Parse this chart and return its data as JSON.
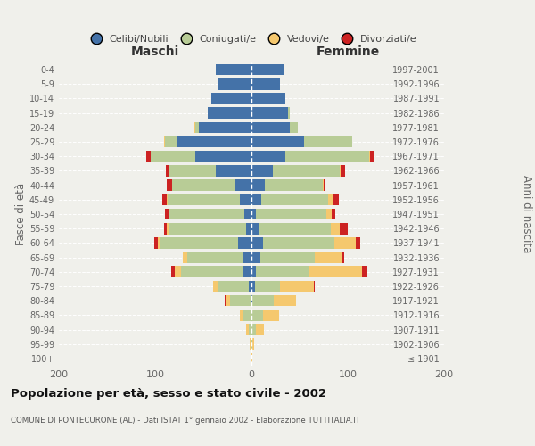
{
  "age_groups": [
    "100+",
    "95-99",
    "90-94",
    "85-89",
    "80-84",
    "75-79",
    "70-74",
    "65-69",
    "60-64",
    "55-59",
    "50-54",
    "45-49",
    "40-44",
    "35-39",
    "30-34",
    "25-29",
    "20-24",
    "15-19",
    "10-14",
    "5-9",
    "0-4"
  ],
  "birth_years": [
    "≤ 1901",
    "1902-1906",
    "1907-1911",
    "1912-1916",
    "1917-1921",
    "1922-1926",
    "1927-1931",
    "1932-1936",
    "1937-1941",
    "1942-1946",
    "1947-1951",
    "1952-1956",
    "1957-1961",
    "1962-1966",
    "1967-1971",
    "1972-1976",
    "1977-1981",
    "1982-1986",
    "1987-1991",
    "1992-1996",
    "1997-2001"
  ],
  "male": {
    "celibi": [
      0,
      0,
      0,
      0,
      0,
      3,
      8,
      8,
      14,
      6,
      7,
      12,
      17,
      37,
      58,
      77,
      55,
      45,
      42,
      35,
      37
    ],
    "coniugati": [
      0,
      1,
      3,
      8,
      22,
      32,
      65,
      59,
      80,
      80,
      78,
      75,
      65,
      48,
      47,
      13,
      3,
      0,
      0,
      0,
      0
    ],
    "vedovi": [
      0,
      1,
      3,
      4,
      5,
      5,
      7,
      4,
      3,
      2,
      1,
      1,
      0,
      0,
      0,
      1,
      1,
      0,
      0,
      0,
      0
    ],
    "divorziati": [
      0,
      0,
      0,
      0,
      1,
      0,
      3,
      0,
      4,
      3,
      4,
      5,
      6,
      4,
      4,
      0,
      0,
      0,
      0,
      0,
      0
    ]
  },
  "female": {
    "nubili": [
      0,
      0,
      0,
      0,
      1,
      4,
      5,
      9,
      12,
      7,
      5,
      10,
      14,
      22,
      35,
      55,
      40,
      38,
      35,
      30,
      33
    ],
    "coniugate": [
      0,
      1,
      5,
      12,
      22,
      26,
      55,
      57,
      74,
      75,
      73,
      70,
      60,
      70,
      87,
      50,
      8,
      2,
      0,
      0,
      0
    ],
    "vedove": [
      1,
      2,
      8,
      17,
      23,
      35,
      55,
      28,
      22,
      10,
      5,
      4,
      1,
      1,
      1,
      0,
      0,
      0,
      0,
      0,
      0
    ],
    "divorziate": [
      0,
      0,
      0,
      0,
      0,
      1,
      5,
      2,
      5,
      8,
      4,
      7,
      2,
      4,
      5,
      0,
      0,
      0,
      0,
      0,
      0
    ]
  },
  "colors": {
    "celibi": "#4472a8",
    "coniugati": "#b8cc96",
    "vedovi": "#f5c86e",
    "divorziati": "#cc2222"
  },
  "xlim": 200,
  "title": "Popolazione per età, sesso e stato civile - 2002",
  "subtitle": "COMUNE DI PONTECURONE (AL) - Dati ISTAT 1° gennaio 2002 - Elaborazione TUTTITALIA.IT",
  "ylabel": "Fasce di età",
  "y2label": "Anni di nascita",
  "legend_labels": [
    "Celibi/Nubili",
    "Coniugati/e",
    "Vedovi/e",
    "Divorziati/e"
  ],
  "maschi_label": "Maschi",
  "femmine_label": "Femmine",
  "background_color": "#f0f0eb"
}
